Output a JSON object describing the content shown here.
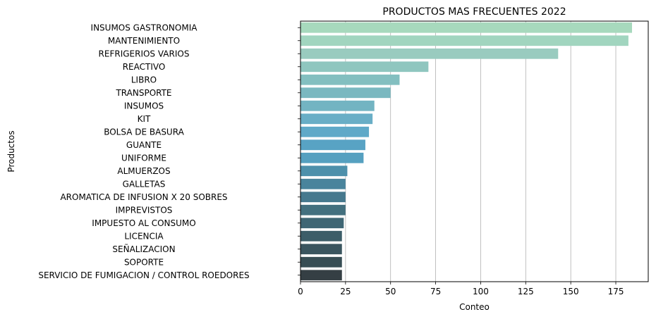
{
  "chart_data": {
    "type": "bar",
    "orientation": "horizontal",
    "title": "PRODUCTOS MAS FRECUENTES 2022",
    "xlabel": "Conteo",
    "ylabel": "Productos",
    "xlim": [
      0,
      193
    ],
    "xticks": [
      0,
      25,
      50,
      75,
      100,
      125,
      150,
      175
    ],
    "grid": "x",
    "palette": "GnBu_d",
    "categories": [
      "INSUMOS GASTRONOMIA",
      "MANTENIMIENTO",
      "REFRIGERIOS VARIOS",
      "REACTIVO",
      "LIBRO",
      "TRANSPORTE",
      "INSUMOS",
      "KIT",
      "BOLSA DE BASURA",
      "GUANTE",
      "UNIFORME",
      "ALMUERZOS",
      "GALLETAS",
      "AROMATICA DE INFUSION X 20 SOBRES",
      "IMPREVISTOS",
      "IMPUESTO AL CONSUMO",
      "LICENCIA",
      "SEÑALIZACION",
      "SOPORTE",
      "SERVICIO DE FUMIGACION / CONTROL ROEDORES"
    ],
    "values": [
      184,
      182,
      143,
      71,
      55,
      50,
      41,
      40,
      38,
      36,
      35,
      26,
      25,
      25,
      25,
      24,
      23,
      23,
      23,
      23
    ],
    "colors": [
      "#a7d9bd",
      "#a1d5bf",
      "#99cbbf",
      "#8fc6bf",
      "#83bfc0",
      "#7ab8c0",
      "#73b4c2",
      "#69aec6",
      "#5fa9c8",
      "#58a3c4",
      "#55a0c0",
      "#4d90ab",
      "#49849c",
      "#46798e",
      "#43707f",
      "#3f6674",
      "#3c5d68",
      "#3a555f",
      "#374d54",
      "#353f44"
    ]
  }
}
